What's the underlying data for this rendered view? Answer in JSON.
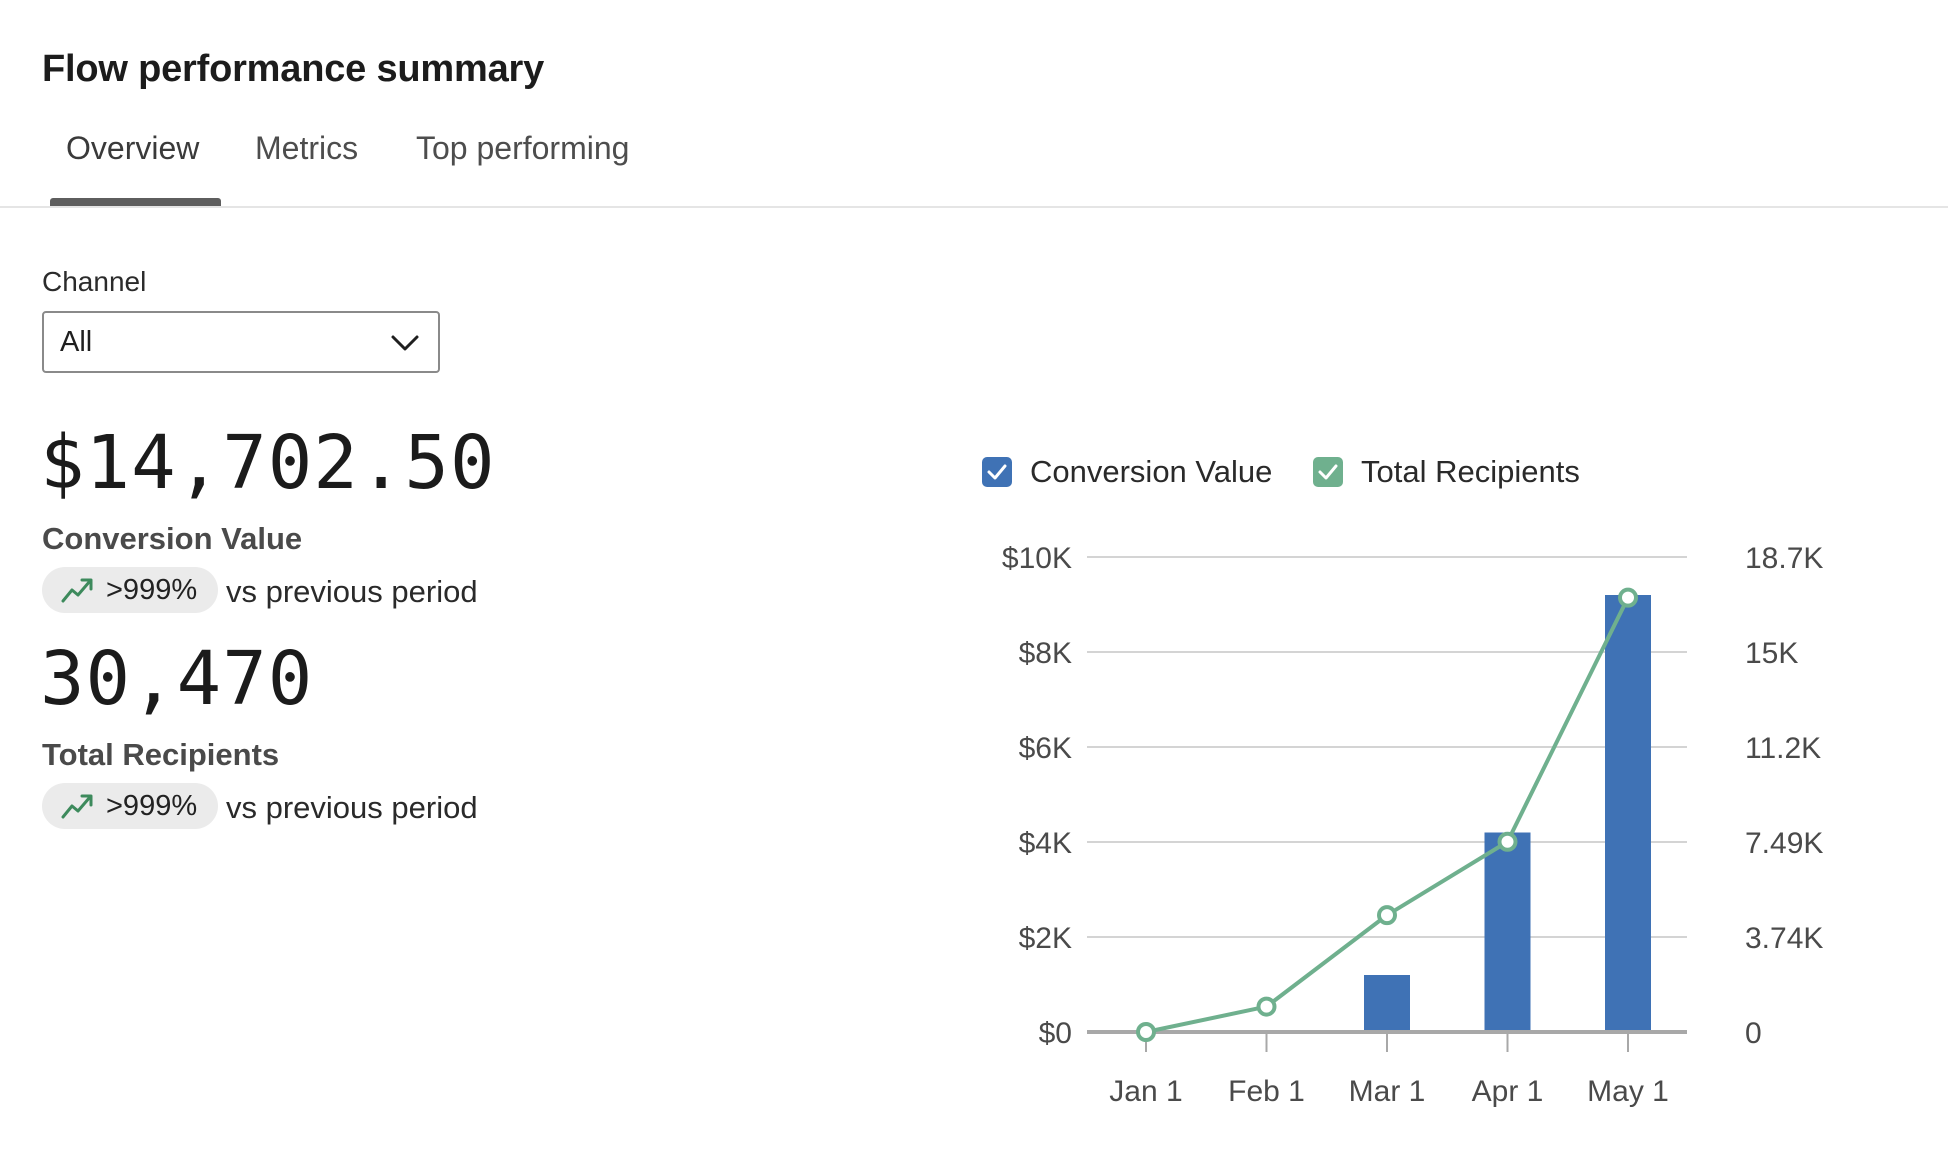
{
  "header": {
    "title": "Flow performance summary"
  },
  "tabs": [
    {
      "label": "Overview",
      "active": true
    },
    {
      "label": "Metrics",
      "active": false
    },
    {
      "label": "Top performing",
      "active": false
    }
  ],
  "filter": {
    "label": "Channel",
    "selected": "All"
  },
  "metrics": [
    {
      "value": "$14,702.50",
      "label": "Conversion Value",
      "change": ">999%",
      "change_suffix": "vs previous period"
    },
    {
      "value": "30,470",
      "label": "Total Recipients",
      "change": ">999%",
      "change_suffix": "vs previous period"
    }
  ],
  "legend": [
    {
      "label": "Conversion Value",
      "checked": true,
      "color": "#3f72b5"
    },
    {
      "label": "Total Recipients",
      "checked": true,
      "color": "#6fb08e"
    }
  ],
  "colors": {
    "accent_up": "#3d8a5c",
    "bar": "#3f72b5",
    "line": "#6fb08e"
  },
  "chart_data": {
    "type": "bar+line",
    "categories": [
      "Jan 1",
      "Feb 1",
      "Mar 1",
      "Apr 1",
      "May 1"
    ],
    "series": [
      {
        "name": "Conversion Value",
        "type": "bar",
        "axis": "left",
        "values": [
          0,
          0,
          1200,
          4200,
          9200
        ]
      },
      {
        "name": "Total Recipients",
        "type": "line",
        "axis": "right",
        "values": [
          0,
          1000,
          4600,
          7490,
          17100
        ]
      }
    ],
    "y_left": {
      "ticks": [
        "$0",
        "$2K",
        "$4K",
        "$6K",
        "$8K",
        "$10K"
      ],
      "range": [
        0,
        10000
      ]
    },
    "y_right": {
      "ticks": [
        "0",
        "3.74K",
        "7.49K",
        "11.2K",
        "15K",
        "18.7K"
      ],
      "range": [
        0,
        18700
      ]
    },
    "grid": true,
    "legend_position": "top-left"
  }
}
